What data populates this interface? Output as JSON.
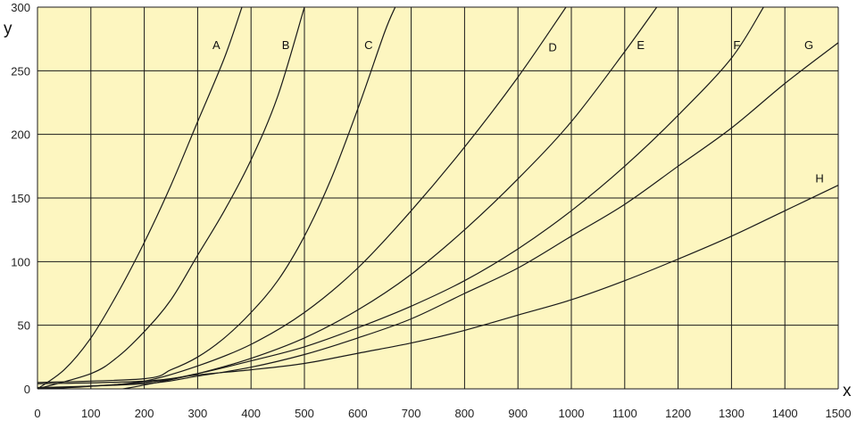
{
  "chart_data": {
    "type": "line",
    "title": "",
    "xlabel": "x",
    "ylabel": "y",
    "xlim": [
      0,
      1500
    ],
    "ylim": [
      0,
      300
    ],
    "x_ticks": [
      "0",
      "100",
      "200",
      "300",
      "400",
      "500",
      "600",
      "700",
      "800",
      "900",
      "1000",
      "1100",
      "1200",
      "1300",
      "1400",
      "1500"
    ],
    "y_ticks": [
      "0",
      "50",
      "100",
      "150",
      "200",
      "250",
      "300"
    ],
    "grid": true,
    "background_color": "#fdf6c0",
    "grid_color": "#1a1a1a",
    "line_color": "#1a1a1a",
    "series": [
      {
        "name": "A",
        "points": [
          [
            0,
            0
          ],
          [
            50,
            15
          ],
          [
            100,
            40
          ],
          [
            150,
            75
          ],
          [
            200,
            115
          ],
          [
            250,
            160
          ],
          [
            300,
            210
          ],
          [
            350,
            260
          ],
          [
            383,
            300
          ]
        ]
      },
      {
        "name": "B",
        "points": [
          [
            0,
            0
          ],
          [
            100,
            12
          ],
          [
            150,
            25
          ],
          [
            200,
            45
          ],
          [
            250,
            70
          ],
          [
            300,
            105
          ],
          [
            350,
            140
          ],
          [
            400,
            180
          ],
          [
            450,
            230
          ],
          [
            500,
            300
          ]
        ]
      },
      {
        "name": "C",
        "points": [
          [
            0,
            5
          ],
          [
            200,
            8
          ],
          [
            250,
            15
          ],
          [
            300,
            25
          ],
          [
            350,
            40
          ],
          [
            400,
            60
          ],
          [
            450,
            85
          ],
          [
            500,
            120
          ],
          [
            550,
            165
          ],
          [
            600,
            220
          ],
          [
            650,
            280
          ],
          [
            670,
            300
          ]
        ]
      },
      {
        "name": "D",
        "points": [
          [
            0,
            0
          ],
          [
            100,
            2
          ],
          [
            200,
            6
          ],
          [
            300,
            18
          ],
          [
            400,
            35
          ],
          [
            500,
            60
          ],
          [
            600,
            95
          ],
          [
            700,
            140
          ],
          [
            800,
            190
          ],
          [
            900,
            245
          ],
          [
            990,
            300
          ]
        ]
      },
      {
        "name": "E",
        "points": [
          [
            160,
            0
          ],
          [
            200,
            3
          ],
          [
            300,
            12
          ],
          [
            400,
            24
          ],
          [
            500,
            40
          ],
          [
            600,
            62
          ],
          [
            700,
            90
          ],
          [
            800,
            125
          ],
          [
            900,
            165
          ],
          [
            1000,
            210
          ],
          [
            1100,
            265
          ],
          [
            1160,
            300
          ]
        ]
      },
      {
        "name": "F",
        "points": [
          [
            0,
            0
          ],
          [
            200,
            5
          ],
          [
            300,
            12
          ],
          [
            400,
            22
          ],
          [
            500,
            33
          ],
          [
            600,
            48
          ],
          [
            700,
            65
          ],
          [
            800,
            85
          ],
          [
            900,
            110
          ],
          [
            1000,
            140
          ],
          [
            1100,
            175
          ],
          [
            1200,
            215
          ],
          [
            1300,
            260
          ],
          [
            1360,
            300
          ]
        ]
      },
      {
        "name": "G",
        "points": [
          [
            0,
            1
          ],
          [
            200,
            4
          ],
          [
            300,
            10
          ],
          [
            400,
            17
          ],
          [
            500,
            27
          ],
          [
            600,
            40
          ],
          [
            700,
            55
          ],
          [
            800,
            75
          ],
          [
            900,
            95
          ],
          [
            1000,
            120
          ],
          [
            1100,
            145
          ],
          [
            1200,
            175
          ],
          [
            1300,
            205
          ],
          [
            1400,
            240
          ],
          [
            1500,
            272
          ]
        ]
      },
      {
        "name": "H",
        "points": [
          [
            0,
            4
          ],
          [
            200,
            6
          ],
          [
            300,
            11
          ],
          [
            400,
            15
          ],
          [
            500,
            20
          ],
          [
            600,
            28
          ],
          [
            700,
            36
          ],
          [
            800,
            46
          ],
          [
            900,
            58
          ],
          [
            1000,
            70
          ],
          [
            1100,
            85
          ],
          [
            1200,
            102
          ],
          [
            1300,
            120
          ],
          [
            1400,
            140
          ],
          [
            1500,
            160
          ]
        ]
      }
    ],
    "series_labels": [
      {
        "name": "A",
        "x": 335,
        "y": 270
      },
      {
        "name": "B",
        "x": 465,
        "y": 270
      },
      {
        "name": "C",
        "x": 620,
        "y": 270
      },
      {
        "name": "D",
        "x": 965,
        "y": 268
      },
      {
        "name": "E",
        "x": 1130,
        "y": 270
      },
      {
        "name": "F",
        "x": 1310,
        "y": 270
      },
      {
        "name": "G",
        "x": 1445,
        "y": 270
      },
      {
        "name": "H",
        "x": 1465,
        "y": 165
      }
    ]
  }
}
